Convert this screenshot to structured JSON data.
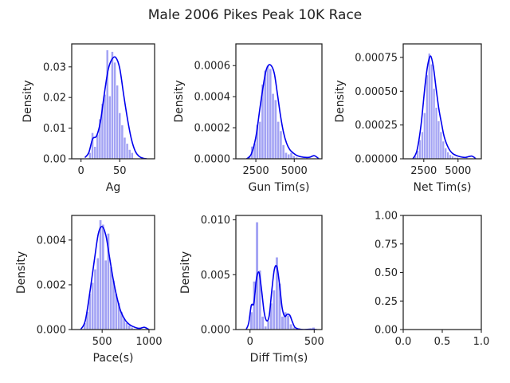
{
  "figure": {
    "title": "Male 2006 Pikes Peak 10K Race"
  },
  "chart_data": [
    {
      "type": "bar",
      "xlabel": "Ag",
      "ylabel": "Density",
      "xlim": [
        -12,
        95
      ],
      "ylim": [
        0,
        0.0375
      ],
      "xticks": [
        0,
        50
      ],
      "xtick_labels": [
        "0",
        "50"
      ],
      "yticks": [
        0,
        0.01,
        0.02,
        0.03
      ],
      "ytick_labels": [
        "0.00",
        "0.01",
        "0.02",
        "0.03"
      ],
      "histogram": {
        "bin_start": 10,
        "bin_width": 3.2,
        "values": [
          0.002,
          0.0085,
          0.004,
          0.008,
          0.013,
          0.018,
          0.021,
          0.0355,
          0.0205,
          0.035,
          0.0315,
          0.024,
          0.015,
          0.011,
          0.007,
          0.005,
          0.003,
          0.002
        ]
      },
      "kde": {
        "x": [
          5,
          10,
          15,
          20,
          25,
          30,
          35,
          40,
          45,
          50,
          55,
          60,
          65,
          70,
          75,
          80,
          85
        ],
        "y": [
          0.0004,
          0.002,
          0.0065,
          0.0074,
          0.012,
          0.021,
          0.029,
          0.0325,
          0.033,
          0.0295,
          0.021,
          0.013,
          0.0065,
          0.0025,
          0.0008,
          0.0002,
          0.0
        ]
      }
    },
    {
      "type": "bar",
      "xlabel": "Gun Tim(s)",
      "ylabel": "Density",
      "xlim": [
        1200,
        6800
      ],
      "ylim": [
        0,
        0.00074
      ],
      "xticks": [
        2500,
        5000
      ],
      "xtick_labels": [
        "2500",
        "5000"
      ],
      "yticks": [
        0,
        0.0002,
        0.0004,
        0.0006
      ],
      "ytick_labels": [
        "0.0000",
        "0.0002",
        "0.0004",
        "0.0006"
      ],
      "histogram": {
        "bin_start": 2000,
        "bin_width": 170,
        "values": [
          2e-05,
          8e-05,
          0.0001,
          0.00022,
          0.00024,
          0.00048,
          0.00057,
          0.0006,
          0.00058,
          0.00042,
          0.00038,
          0.00024,
          0.00018,
          9e-05,
          4e-05,
          3e-05,
          4e-05,
          2e-05,
          1e-05,
          5e-06,
          5e-06,
          5e-06,
          1e-05,
          5e-06
        ]
      },
      "kde": {
        "x": [
          1900,
          2200,
          2500,
          2800,
          3100,
          3300,
          3500,
          3700,
          3900,
          4100,
          4300,
          4500,
          4700,
          4900,
          5200,
          5600,
          6000,
          6300,
          6600
        ],
        "y": [
          0.0,
          3e-05,
          0.00014,
          0.00035,
          0.00054,
          0.0006,
          0.0006,
          0.00055,
          0.00042,
          0.00028,
          0.00017,
          0.0001,
          6e-05,
          4e-05,
          2e-05,
          1e-05,
          1e-05,
          2e-05,
          0.0
        ]
      }
    },
    {
      "type": "bar",
      "xlabel": "Net Tim(s)",
      "ylabel": "Density",
      "xlim": [
        1000,
        6700
      ],
      "ylim": [
        0,
        0.00085
      ],
      "xticks": [
        2500,
        5000
      ],
      "xtick_labels": [
        "2500",
        "5000"
      ],
      "yticks": [
        0,
        0.00025,
        0.0005,
        0.00075
      ],
      "ytick_labels": [
        "0.00000",
        "0.00025",
        "0.00050",
        "0.00075"
      ],
      "histogram": {
        "bin_start": 1800,
        "bin_width": 170,
        "values": [
          2e-05,
          6e-05,
          0.00014,
          0.0002,
          0.00034,
          0.00062,
          0.00078,
          0.0007,
          0.00052,
          0.00038,
          0.00028,
          0.0002,
          0.00013,
          8e-05,
          5e-05,
          3e-05,
          2e-05,
          1e-05,
          1e-05,
          5e-06,
          5e-06,
          5e-06,
          1e-05
        ]
      },
      "kde": {
        "x": [
          1700,
          2000,
          2300,
          2600,
          2800,
          3000,
          3200,
          3400,
          3600,
          3800,
          4000,
          4300,
          4600,
          5000,
          5500,
          6000,
          6300
        ],
        "y": [
          0.0,
          6e-05,
          0.00025,
          0.00055,
          0.0007,
          0.00076,
          0.00068,
          0.00052,
          0.00037,
          0.00026,
          0.00016,
          8e-05,
          4e-05,
          2e-05,
          1e-05,
          2e-05,
          0.0
        ]
      }
    },
    {
      "type": "bar",
      "xlabel": "Pace(s)",
      "ylabel": "Density",
      "xlim": [
        175,
        1060
      ],
      "ylim": [
        0,
        0.0051
      ],
      "xticks": [
        500,
        1000
      ],
      "xtick_labels": [
        "500",
        "1000"
      ],
      "yticks": [
        0,
        0.002,
        0.004
      ],
      "ytick_labels": [
        "0.000",
        "0.002",
        "0.004"
      ],
      "histogram": {
        "bin_start": 300,
        "bin_width": 28,
        "values": [
          0.0003,
          0.0008,
          0.0016,
          0.0021,
          0.0027,
          0.0032,
          0.0049,
          0.0047,
          0.0031,
          0.0043,
          0.0028,
          0.0022,
          0.0016,
          0.0012,
          0.0008,
          0.0005,
          0.0003,
          0.0002,
          0.0001,
          5e-05,
          5e-05,
          0.0001
        ]
      },
      "kde": {
        "x": [
          270,
          320,
          370,
          420,
          460,
          500,
          540,
          580,
          620,
          660,
          700,
          750,
          800,
          850,
          900,
          950,
          1000
        ],
        "y": [
          0.0,
          0.0004,
          0.0017,
          0.0032,
          0.0043,
          0.0046,
          0.0042,
          0.0032,
          0.0022,
          0.0014,
          0.0008,
          0.0004,
          0.0002,
          0.0001,
          5e-05,
          0.0001,
          0.0
        ]
      }
    },
    {
      "type": "bar",
      "xlabel": "Diff Tim(s)",
      "ylabel": "Density",
      "xlim": [
        -110,
        560
      ],
      "ylim": [
        0,
        0.0104
      ],
      "xticks": [
        0,
        500
      ],
      "xtick_labels": [
        "0",
        "500"
      ],
      "yticks": [
        0,
        0.005,
        0.01
      ],
      "ytick_labels": [
        "0.000",
        "0.005",
        "0.010"
      ],
      "histogram": {
        "bin_start": 0,
        "bin_width": 22,
        "values": [
          0.0016,
          0.0044,
          0.0098,
          0.0054,
          0.0012,
          0.0003,
          0.0008,
          0.0024,
          0.0036,
          0.0066,
          0.0042,
          0.0012,
          0.0016,
          0.0013,
          0.0005,
          0.0002,
          0.0001,
          0.0,
          0.0,
          0.0,
          0.0,
          0.0,
          0.0002
        ]
      },
      "kde": {
        "x": [
          -30,
          -10,
          10,
          30,
          50,
          70,
          90,
          110,
          130,
          150,
          170,
          190,
          210,
          230,
          250,
          270,
          290,
          310,
          330,
          350,
          380,
          420,
          470,
          520
        ],
        "y": [
          0.0,
          0.0006,
          0.0022,
          0.0024,
          0.0046,
          0.0052,
          0.0036,
          0.0016,
          0.0008,
          0.0013,
          0.0036,
          0.0055,
          0.0057,
          0.0041,
          0.002,
          0.0012,
          0.0014,
          0.0013,
          0.0007,
          0.0002,
          5e-05,
          0.0,
          3e-05,
          0.0
        ]
      }
    },
    {
      "type": "bar",
      "xlabel": "",
      "ylabel": "",
      "xlim": [
        0,
        1
      ],
      "ylim": [
        0,
        1
      ],
      "xticks": [
        0,
        0.5,
        1
      ],
      "xtick_labels": [
        "0.0",
        "0.5",
        "1.0"
      ],
      "yticks": [
        0,
        0.25,
        0.5,
        0.75,
        1
      ],
      "ytick_labels": [
        "0.00",
        "0.25",
        "0.50",
        "0.75",
        "1.00"
      ],
      "histogram": null,
      "kde": null
    }
  ]
}
